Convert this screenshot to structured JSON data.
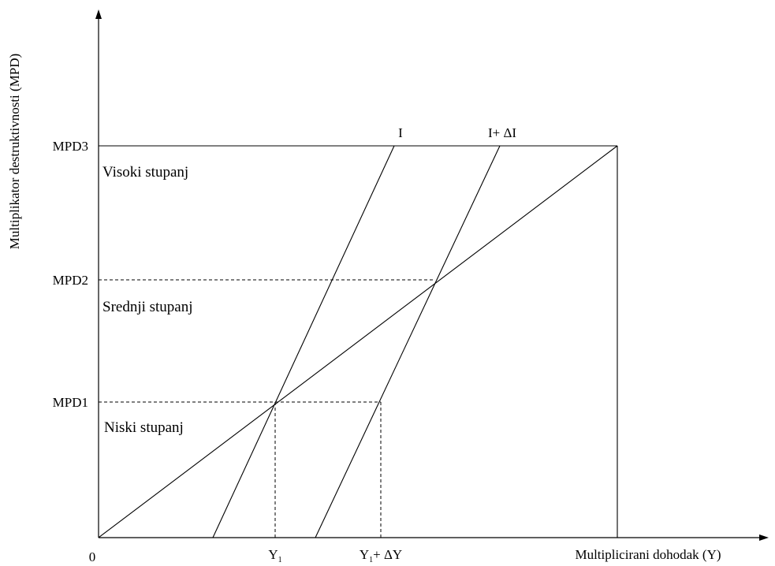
{
  "y_axis_label": "Multiplikator destruktivnosti (MPD)",
  "x_axis_label": "Multiplicirani dohodak (Y)",
  "origin_label": "0",
  "levels": {
    "mpd3": "MPD3",
    "mpd2": "MPD2",
    "mpd1": "MPD1"
  },
  "regions": {
    "high": "Visoki stupanj",
    "medium": "Srednji stupanj",
    "low": "Niski stupanj"
  },
  "curves": {
    "i": "I",
    "i_plus": "I+ ΔI"
  },
  "x_ticks": {
    "y1_main": "Y",
    "y1_sub": "1",
    "y1dy_main": "Y",
    "y1dy_sub": "1",
    "y1dy_rest": "+ ΔY"
  }
}
